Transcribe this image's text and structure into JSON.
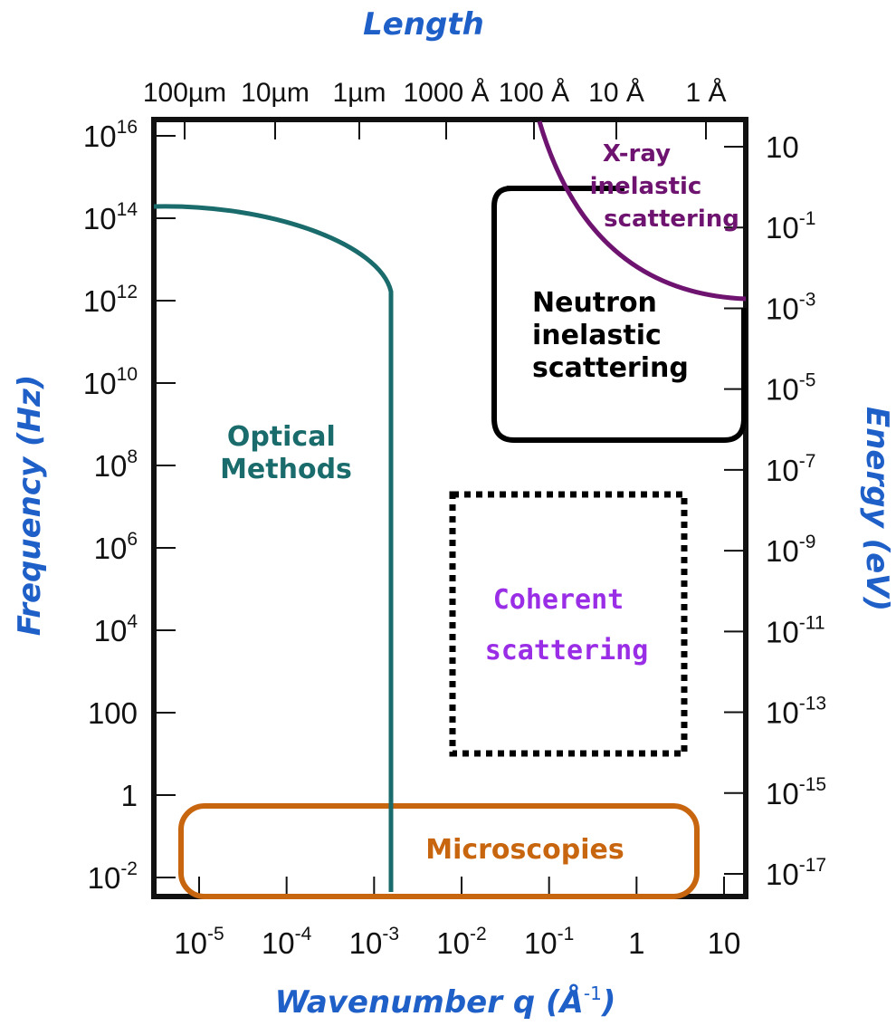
{
  "chart": {
    "top_title": "Length",
    "bottom_title": "Wavenumber q (Å",
    "bottom_title_exp": "-1",
    "bottom_title_close": ")",
    "left_title": "Frequency (Hz)",
    "right_title": "Energy (eV)",
    "top_ticks": [
      "100µm",
      "10µm",
      "1µm",
      "1000 Å",
      "100 Å",
      "10 Å",
      "1 Å"
    ],
    "left_ticks": [
      {
        "base": "10",
        "exp": "16"
      },
      {
        "base": "10",
        "exp": "14"
      },
      {
        "base": "10",
        "exp": "12"
      },
      {
        "base": "10",
        "exp": "10"
      },
      {
        "base": "10",
        "exp": "8"
      },
      {
        "base": "10",
        "exp": "6"
      },
      {
        "base": "10",
        "exp": "4"
      },
      {
        "base": "100",
        "exp": ""
      },
      {
        "base": "1",
        "exp": ""
      },
      {
        "base": "10",
        "exp": "-2"
      }
    ],
    "right_ticks": [
      {
        "base": "10",
        "exp": ""
      },
      {
        "base": "10",
        "exp": "-1"
      },
      {
        "base": "10",
        "exp": "-3"
      },
      {
        "base": "10",
        "exp": "-5"
      },
      {
        "base": "10",
        "exp": "-7"
      },
      {
        "base": "10",
        "exp": "-9"
      },
      {
        "base": "10",
        "exp": "-11"
      },
      {
        "base": "10",
        "exp": "-13"
      },
      {
        "base": "10",
        "exp": "-15"
      },
      {
        "base": "10",
        "exp": "-17"
      }
    ],
    "bottom_ticks": [
      {
        "base": "10",
        "exp": "-5"
      },
      {
        "base": "10",
        "exp": "-4"
      },
      {
        "base": "10",
        "exp": "-3"
      },
      {
        "base": "10",
        "exp": "-2"
      },
      {
        "base": "10",
        "exp": "-1"
      },
      {
        "base": "1",
        "exp": ""
      },
      {
        "base": "10",
        "exp": ""
      }
    ]
  },
  "regions": {
    "optical": {
      "line1": "Optical",
      "line2": "Methods",
      "color": "#1a6b6b"
    },
    "xray": {
      "line1": "X-ray",
      "line2": "inelastic",
      "line3": "scattering",
      "color": "#6e1470"
    },
    "neutron": {
      "line1": "Neutron",
      "line2": "inelastic",
      "line3": "scattering",
      "color": "#000000"
    },
    "coherent": {
      "line1": "Coherent",
      "line2": "scattering",
      "color": "#9a2ee6"
    },
    "microscopies": {
      "label": "Microscopies",
      "color": "#c8650f"
    }
  },
  "colors": {
    "axis_title": "#1f5fc8",
    "frame": "#111111"
  }
}
